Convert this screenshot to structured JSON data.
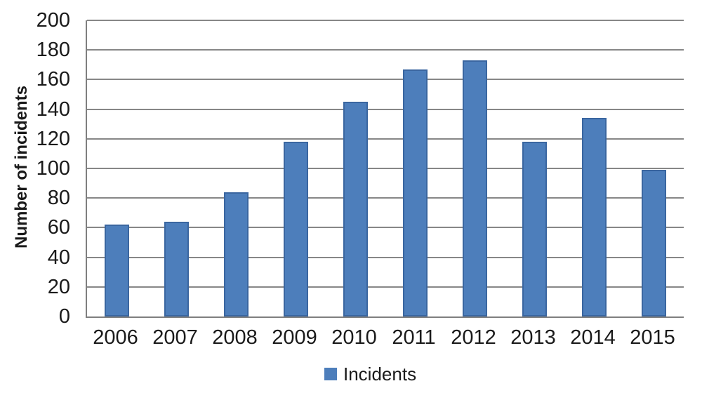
{
  "chart_data": {
    "type": "bar",
    "title": "",
    "categories": [
      "2006",
      "2007",
      "2008",
      "2009",
      "2010",
      "2011",
      "2012",
      "2013",
      "2014",
      "2015"
    ],
    "series": [
      {
        "name": "Incidents",
        "values": [
          62,
          64,
          84,
          118,
          145,
          167,
          173,
          118,
          134,
          99
        ]
      }
    ],
    "xlabel": "",
    "ylabel": "Number of incidents",
    "ylim": [
      0,
      200
    ],
    "yticks": [
      0,
      20,
      40,
      60,
      80,
      100,
      120,
      140,
      160,
      180,
      200
    ],
    "grid": true,
    "legend": {
      "position": "bottom",
      "entries": [
        "Incidents"
      ]
    },
    "colors": {
      "bar_fill": "#4D7EBB",
      "bar_border": "#3A66A0",
      "gridline": "#878787",
      "axis_line": "#7F7F7F",
      "text": "#1A1A1A"
    }
  }
}
